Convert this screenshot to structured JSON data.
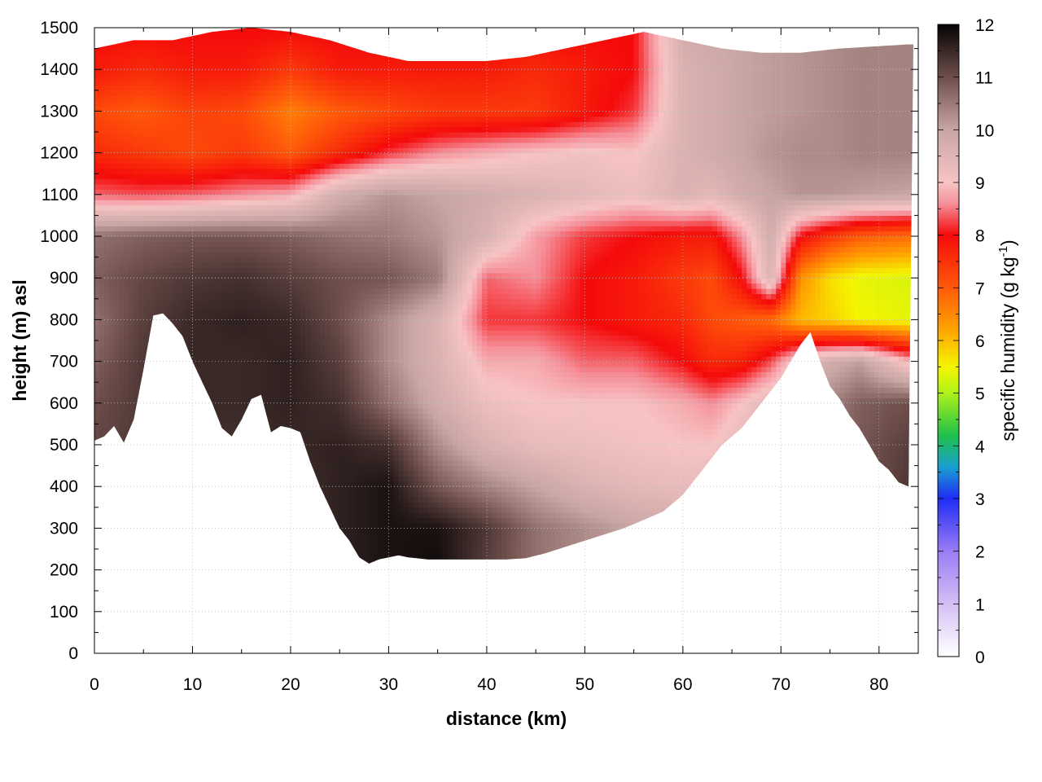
{
  "chart_data": {
    "type": "heatmap",
    "title": "",
    "xlabel": "distance (km)",
    "ylabel": "height (m) asl",
    "xlim": [
      0,
      84
    ],
    "ylim": [
      0,
      1500
    ],
    "x_ticks": [
      "0",
      "10",
      "20",
      "30",
      "40",
      "50",
      "60",
      "70",
      "80"
    ],
    "y_ticks": [
      "0",
      "100",
      "200",
      "300",
      "400",
      "500",
      "600",
      "700",
      "800",
      "900",
      "1000",
      "1100",
      "1200",
      "1300",
      "1400",
      "1500"
    ],
    "grid": true,
    "colorbar": {
      "label_main": "specific humidity (g kg",
      "label_sup": "-1",
      "label_end": ")",
      "range": [
        0,
        12
      ],
      "ticks": [
        "0",
        "1",
        "2",
        "3",
        "4",
        "5",
        "6",
        "7",
        "8",
        "9",
        "10",
        "11",
        "12"
      ],
      "stops": [
        {
          "v": 0,
          "color": "#ffffff"
        },
        {
          "v": 1,
          "color": "#d4bff5"
        },
        {
          "v": 2,
          "color": "#9a7cf5"
        },
        {
          "v": 3,
          "color": "#1f2cf5"
        },
        {
          "v": 3.6,
          "color": "#1a9fd0"
        },
        {
          "v": 4.2,
          "color": "#1fc04a"
        },
        {
          "v": 5,
          "color": "#aef21a"
        },
        {
          "v": 5.5,
          "color": "#f5f500"
        },
        {
          "v": 6.2,
          "color": "#ffa400"
        },
        {
          "v": 7,
          "color": "#ff5a0a"
        },
        {
          "v": 8,
          "color": "#f50a0a"
        },
        {
          "v": 8.6,
          "color": "#f5909a"
        },
        {
          "v": 9,
          "color": "#f7c4c4"
        },
        {
          "v": 10,
          "color": "#c8a6a4"
        },
        {
          "v": 11,
          "color": "#6e4e4b"
        },
        {
          "v": 12,
          "color": "#050303"
        }
      ]
    },
    "terrain": {
      "x_km": [
        0,
        1,
        2,
        3,
        4,
        5,
        6,
        7,
        8,
        9,
        10,
        11,
        12,
        13,
        14,
        15,
        16,
        17,
        18,
        19,
        20,
        21,
        22,
        23,
        24,
        25,
        26,
        27,
        28,
        29,
        30,
        31,
        32,
        34,
        36,
        38,
        40,
        42,
        44,
        46,
        48,
        50,
        52,
        54,
        56,
        58,
        60,
        61,
        62,
        63,
        64,
        65,
        66,
        67,
        68,
        69,
        70,
        71,
        72,
        73,
        74,
        75,
        76,
        77,
        78,
        79,
        80,
        81,
        82,
        83
      ],
      "height_m": [
        510,
        520,
        545,
        505,
        560,
        680,
        810,
        815,
        790,
        760,
        700,
        650,
        600,
        540,
        520,
        560,
        610,
        620,
        530,
        545,
        540,
        530,
        460,
        400,
        350,
        300,
        270,
        230,
        215,
        225,
        230,
        235,
        230,
        225,
        225,
        225,
        225,
        225,
        228,
        240,
        255,
        270,
        285,
        300,
        320,
        340,
        380,
        410,
        440,
        470,
        500,
        520,
        540,
        570,
        600,
        630,
        660,
        700,
        740,
        770,
        700,
        640,
        610,
        570,
        540,
        500,
        460,
        440,
        410,
        400
      ]
    },
    "top_m": [
      1450,
      1470,
      1470,
      1490,
      1500,
      1490,
      1470,
      1440,
      1420,
      1420,
      1420,
      1430,
      1450,
      1470,
      1490,
      1470,
      1450,
      1440,
      1440,
      1450,
      1460
    ],
    "top_x_km": [
      0,
      4,
      8,
      12,
      16,
      20,
      24,
      28,
      32,
      36,
      40,
      44,
      48,
      52,
      56,
      60,
      64,
      68,
      72,
      76,
      83
    ],
    "rows_height_m": [
      200,
      300,
      400,
      500,
      600,
      700,
      800,
      900,
      1000,
      1100,
      1200,
      1300,
      1400,
      1500
    ],
    "rows_x_km": [
      0,
      5,
      10,
      15,
      20,
      25,
      30,
      35,
      40,
      45,
      50,
      55,
      60,
      63,
      66,
      69,
      72,
      75,
      78,
      83
    ],
    "humidity_g_per_kg": [
      [
        11.0,
        11.2,
        11.3,
        11.3,
        11.4,
        11.6,
        11.8,
        11.9,
        11.2,
        10.6,
        10.3,
        10.0,
        9.8,
        9.6,
        9.8,
        10.0,
        10.3,
        10.6,
        10.8,
        11.0
      ],
      [
        11.0,
        11.2,
        11.3,
        11.3,
        11.4,
        11.6,
        11.8,
        11.8,
        11.3,
        10.6,
        10.3,
        10.0,
        9.8,
        9.6,
        9.8,
        10.0,
        10.3,
        10.6,
        10.8,
        11.0
      ],
      [
        11.0,
        11.2,
        11.3,
        11.3,
        11.4,
        11.6,
        11.8,
        10.9,
        10.4,
        10.0,
        9.6,
        9.4,
        9.3,
        9.4,
        9.6,
        9.9,
        10.3,
        10.7,
        11.0,
        11.3
      ],
      [
        11.1,
        11.3,
        11.4,
        11.4,
        11.5,
        11.6,
        11.4,
        10.3,
        9.6,
        9.3,
        9.2,
        9.1,
        9.0,
        9.0,
        9.4,
        9.8,
        10.2,
        10.6,
        10.9,
        11.2
      ],
      [
        11.0,
        11.3,
        11.5,
        11.5,
        11.6,
        11.4,
        10.6,
        9.8,
        9.2,
        9.0,
        9.0,
        9.0,
        8.8,
        8.6,
        9.0,
        9.5,
        10.0,
        10.4,
        10.8,
        11.0
      ],
      [
        10.8,
        11.3,
        11.5,
        11.5,
        11.6,
        11.2,
        10.3,
        9.6,
        8.8,
        8.8,
        8.4,
        8.4,
        8.0,
        7.6,
        7.7,
        8.3,
        9.4,
        9.8,
        10.1,
        8.9
      ],
      [
        10.6,
        11.2,
        11.5,
        11.6,
        11.5,
        11.0,
        10.3,
        9.6,
        8.2,
        8.2,
        8.0,
        7.8,
        7.6,
        7.2,
        7.0,
        6.8,
        6.0,
        5.8,
        5.5,
        5.4
      ],
      [
        10.8,
        11.1,
        11.3,
        11.4,
        11.2,
        11.0,
        10.9,
        10.5,
        8.4,
        8.6,
        8.0,
        7.8,
        7.4,
        7.2,
        8.0,
        9.6,
        6.4,
        5.7,
        5.4,
        5.3
      ],
      [
        10.6,
        10.8,
        10.9,
        10.9,
        10.8,
        10.6,
        10.5,
        10.2,
        9.6,
        8.7,
        8.2,
        8.0,
        7.8,
        7.8,
        8.6,
        9.8,
        8.0,
        7.4,
        7.0,
        6.8
      ],
      [
        8.4,
        8.3,
        8.4,
        8.6,
        8.8,
        9.8,
        10.2,
        10.0,
        9.8,
        9.6,
        9.4,
        9.2,
        9.6,
        9.4,
        9.8,
        10.0,
        10.2,
        10.2,
        10.1,
        10.0
      ],
      [
        7.6,
        7.4,
        7.2,
        7.4,
        7.0,
        7.6,
        8.2,
        8.6,
        8.8,
        9.0,
        9.1,
        9.0,
        9.6,
        9.8,
        10.0,
        10.2,
        10.3,
        10.3,
        10.4,
        10.4
      ],
      [
        7.2,
        7.0,
        7.3,
        7.2,
        6.6,
        7.0,
        7.2,
        7.4,
        7.4,
        7.4,
        7.8,
        8.2,
        9.6,
        9.8,
        10.0,
        10.1,
        10.2,
        10.3,
        10.4,
        10.4
      ],
      [
        7.8,
        7.6,
        7.8,
        7.8,
        7.4,
        7.8,
        7.8,
        7.8,
        7.8,
        7.6,
        7.8,
        8.0,
        9.6,
        9.8,
        10.0,
        10.1,
        10.2,
        10.3,
        10.4,
        10.4
      ],
      [
        8.0,
        8.0,
        8.0,
        8.0,
        8.0,
        8.0,
        8.0,
        8.0,
        8.0,
        8.0,
        8.0,
        8.0,
        9.8,
        9.9,
        10.0,
        10.1,
        10.2,
        10.3,
        10.4,
        10.4
      ]
    ]
  }
}
